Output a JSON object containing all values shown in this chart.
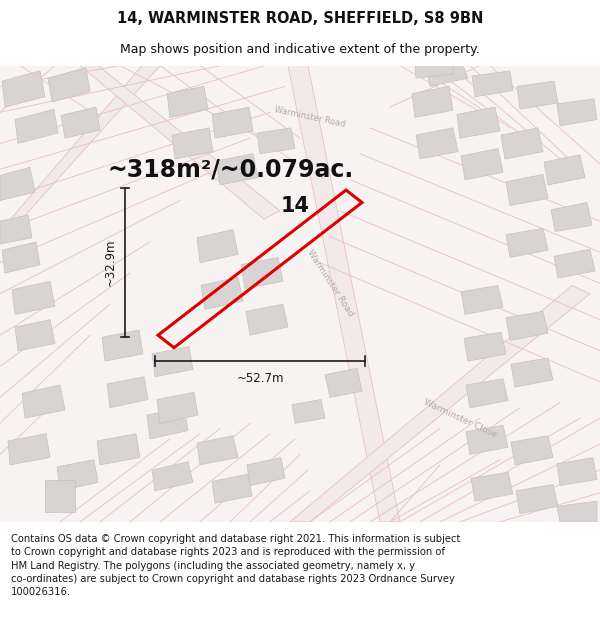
{
  "title_line1": "14, WARMINSTER ROAD, SHEFFIELD, S8 9BN",
  "title_line2": "Map shows position and indicative extent of the property.",
  "area_text": "~318m²/~0.079ac.",
  "label_number": "14",
  "dim_width": "~52.7m",
  "dim_height": "~32.9m",
  "footer_text": "Contains OS data © Crown copyright and database right 2021. This information is subject\nto Crown copyright and database rights 2023 and is reproduced with the permission of\nHM Land Registry. The polygons (including the associated geometry, namely x, y\nco-ordinates) are subject to Crown copyright and database rights 2023 Ordnance Survey\n100026316.",
  "map_bg": "#f7f2f2",
  "road_color": "#e8c0c0",
  "road_fill": "#f2eaea",
  "plot_color": "#dd0000",
  "building_fill": "#d8d4d4",
  "building_edge": "#c8c0c0",
  "dim_color": "#1a1a1a",
  "title_fontsize": 10.5,
  "subtitle_fontsize": 9,
  "area_fontsize": 17,
  "label_fontsize": 15,
  "dim_fontsize": 8.5,
  "footer_fontsize": 7.2,
  "road_label_color": "#b8a8a8",
  "road_label_fontsize": 6.5
}
